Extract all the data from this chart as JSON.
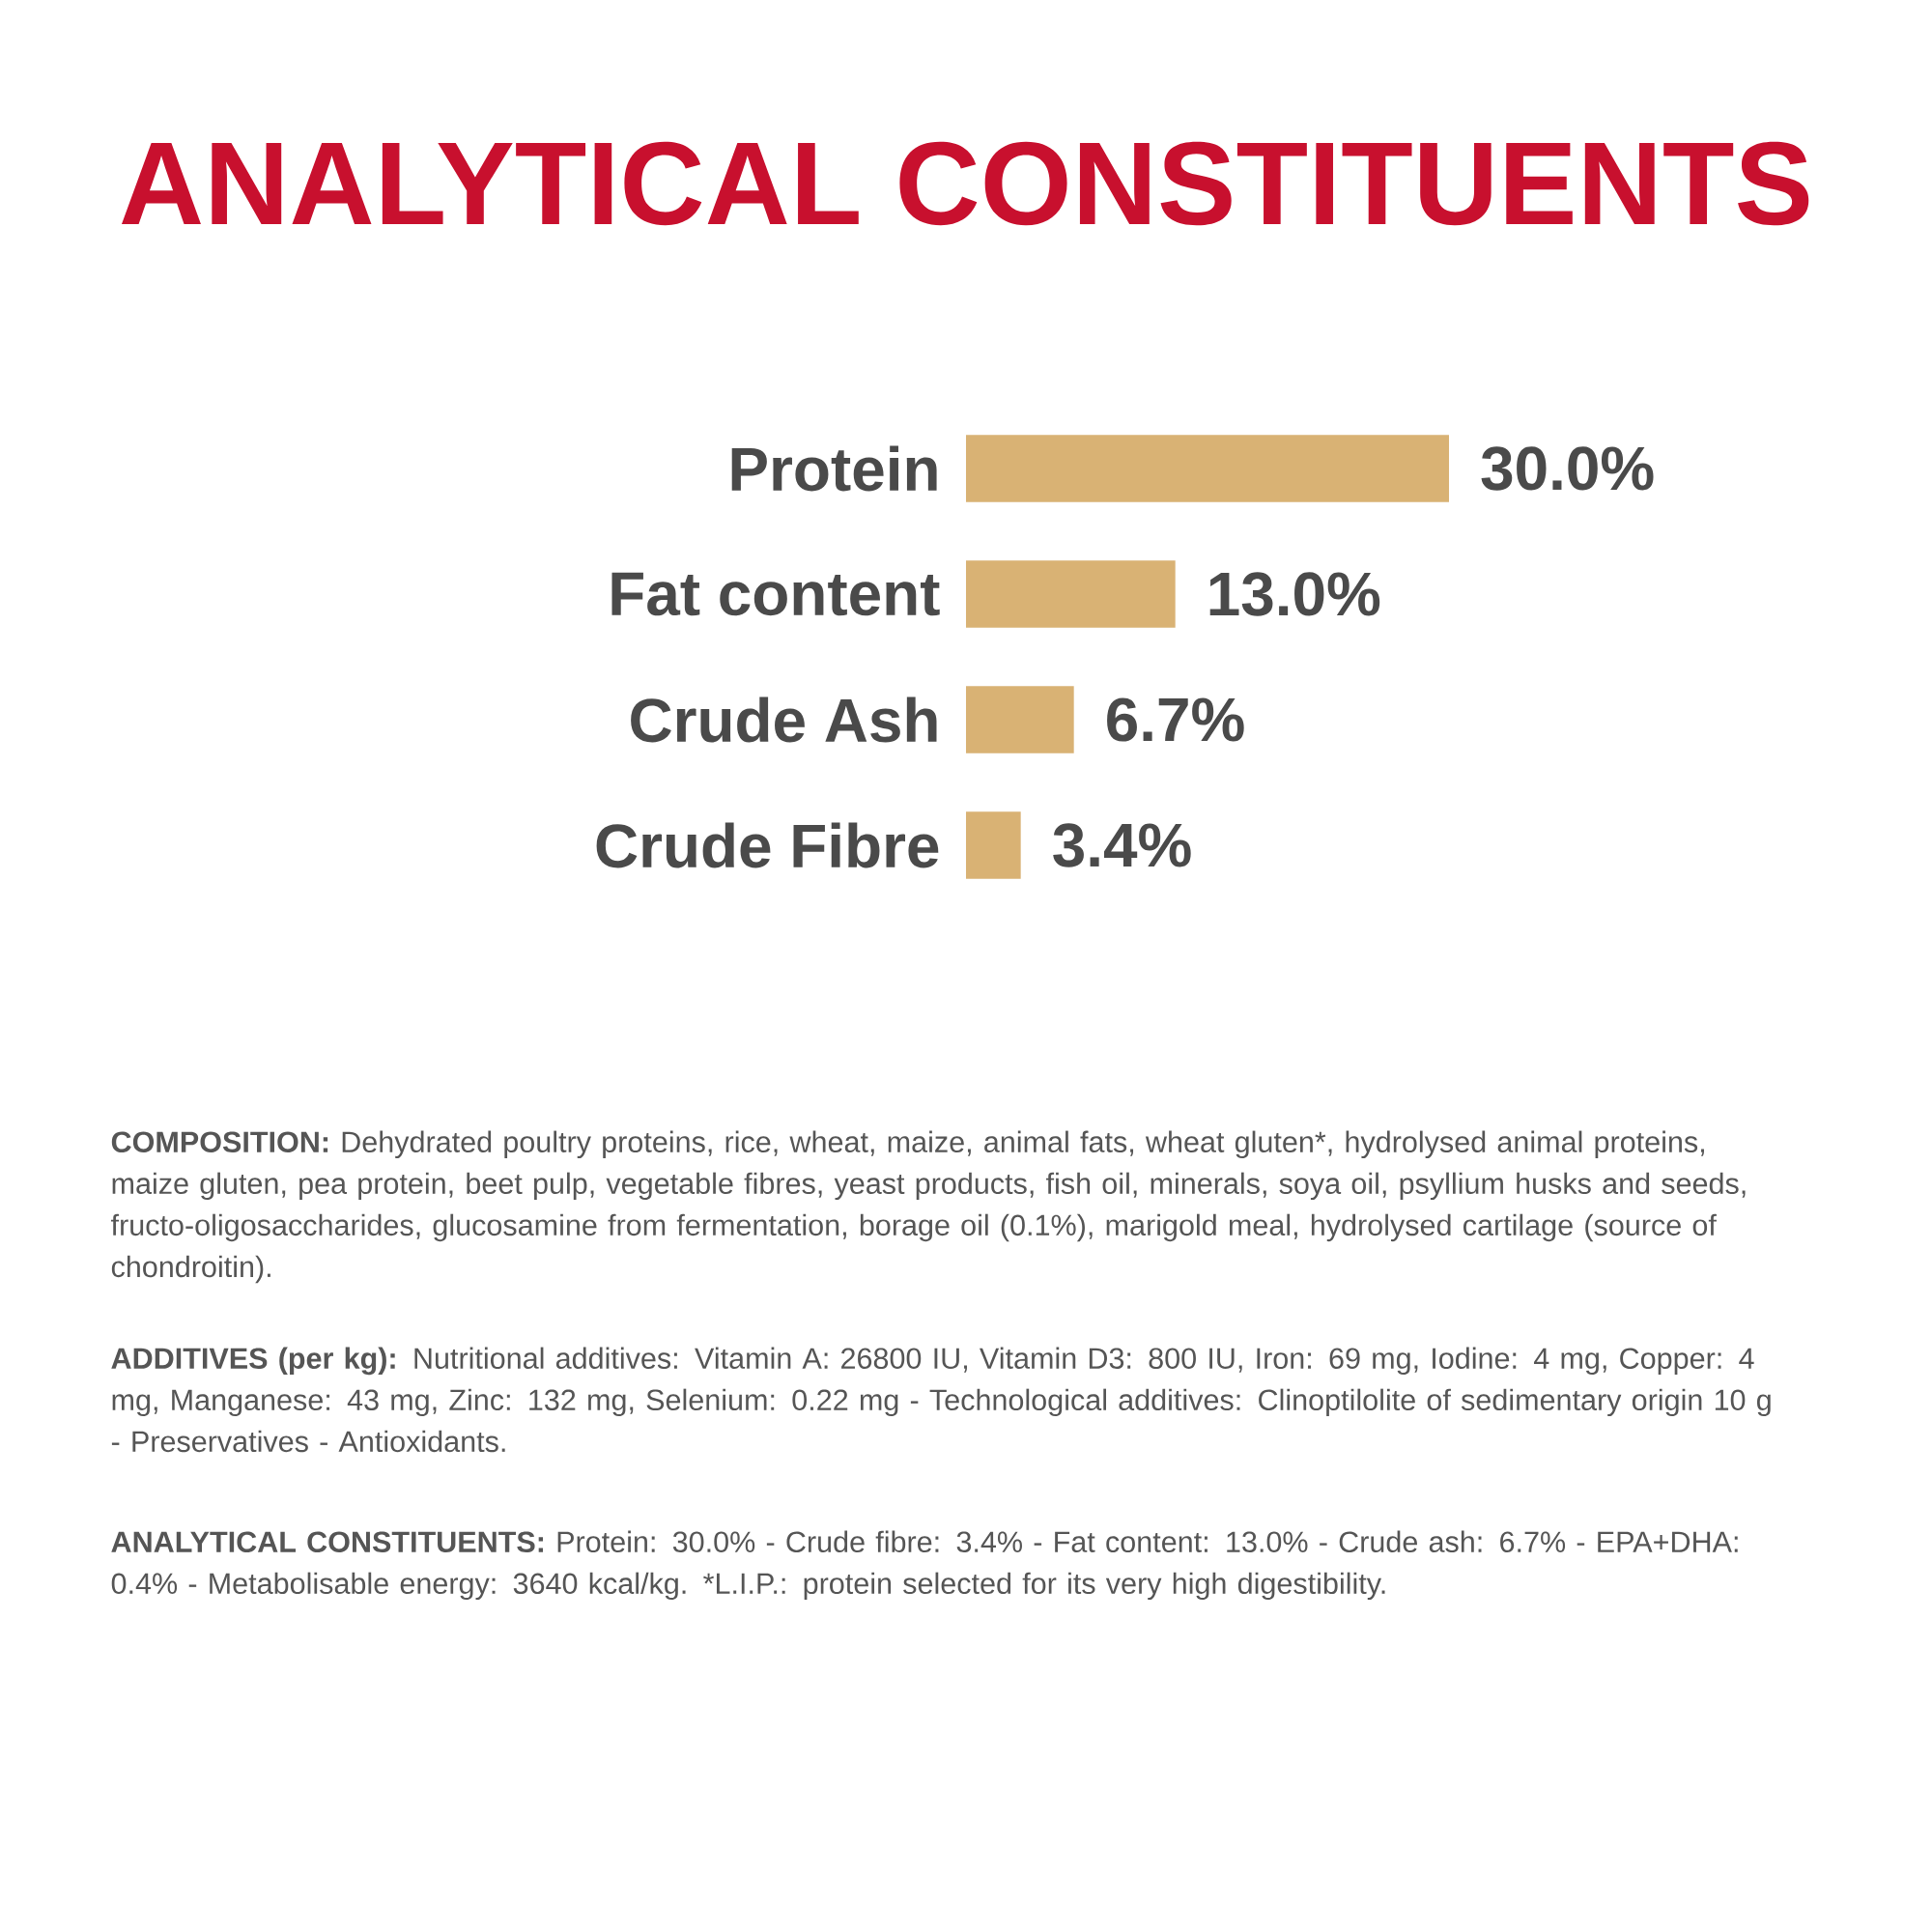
{
  "chart_data": {
    "type": "bar",
    "orientation": "horizontal",
    "title": "ANALYTICAL CONSTITUENTS",
    "categories": [
      "Protein",
      "Fat content",
      "Crude Ash",
      "Crude Fibre"
    ],
    "values": [
      30.0,
      13.0,
      6.7,
      3.4
    ],
    "value_labels": [
      "30.0%",
      "13.0%",
      "6.7%",
      "3.4%"
    ],
    "color": "#d9b274",
    "annotations": [
      "**COMPOSITION:** Dehydrated poultry proteins, rice, wheat, maize, animal fats, wheat gluten*, hydrolysed animal proteins, maize gluten, pea protein, beet pulp, vegetable fibres, yeast products, fish oil, minerals, soya oil, psyllium husks and seeds, fructo-oligosaccharides, glucosamine from fermentation, borage oil (0.1%), marigold meal, hydrolysed cartilage (source of chondroitin).",
      "**ADDITIVES (per kg):** Nutritional additives: Vitamin A: 26800 IU, Vitamin D3: 800 IU, Iron: 69 mg, Iodine: 4 mg, Copper: 4 mg, Manganese: 43 mg, Zinc: 132 mg, Selenium: 0.22 mg - Technological additives: Clinoptilolite of sedimentary origin 10 g - Preservatives - Antioxidants.",
      "**ANALYTICAL CONSTITUENTS:** Protein: 30.0% - Crude fibre: 3.4% - Fat content: 13.0% - Crude ash: 6.7% - EPA+DHA: 0.4% - Metabolisable energy: 3640 kcal/kg. *L.I.P.: protein selected for its very high digestibility."
    ]
  }
}
